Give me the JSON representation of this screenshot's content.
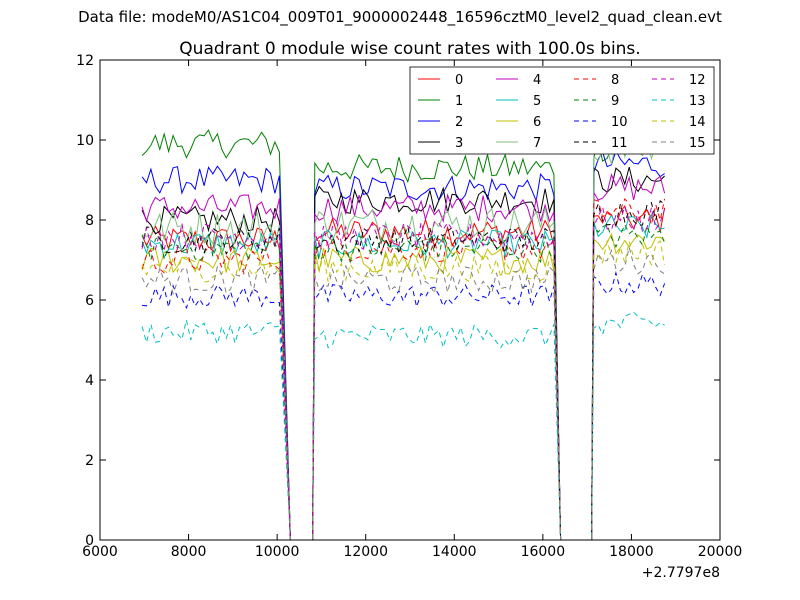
{
  "page": {
    "suptitle": "Data file: modeM0/AS1C04_009T01_9000002448_16596cztM0_level2_quad_clean.evt"
  },
  "chart_data": {
    "type": "line",
    "title": "Quadrant 0 module wise count rates with 100.0s bins.",
    "xlabel": "",
    "ylabel": "",
    "xlim": [
      6000,
      20000
    ],
    "ylim": [
      0,
      12
    ],
    "x_ticks": [
      "6000",
      "8000",
      "10000",
      "12000",
      "14000",
      "16000",
      "18000",
      "20000"
    ],
    "y_ticks": [
      "0",
      "2",
      "4",
      "6",
      "8",
      "10",
      "12"
    ],
    "x_offset_label": "+2.7797e8",
    "grid": false,
    "legend": {
      "placement": "top-right",
      "columns": 4
    },
    "segments": [
      {
        "start": 6950,
        "end": 10050
      },
      {
        "start": 10850,
        "end": 16250
      },
      {
        "start": 17150,
        "end": 18750
      }
    ],
    "gaps": [
      {
        "drop_start": 10050,
        "zero_from": 10300,
        "zero_to": 10800,
        "rise_end": 10850
      },
      {
        "drop_start": 16250,
        "zero_from": 16400,
        "zero_to": 17100,
        "rise_end": 17150
      }
    ],
    "bin_width": 100,
    "series": [
      {
        "name": "0",
        "color": "#ff0000",
        "dash": "solid",
        "levels": [
          7.5,
          7.7,
          8.0
        ],
        "noise": 0.35
      },
      {
        "name": "1",
        "color": "#008000",
        "dash": "solid",
        "levels": [
          9.9,
          9.3,
          9.8
        ],
        "noise": 0.35
      },
      {
        "name": "2",
        "color": "#0000ff",
        "dash": "solid",
        "levels": [
          9.0,
          8.8,
          9.4
        ],
        "noise": 0.35
      },
      {
        "name": "3",
        "color": "#000000",
        "dash": "solid",
        "levels": [
          8.0,
          8.5,
          9.0
        ],
        "noise": 0.35
      },
      {
        "name": "4",
        "color": "#bf00bf",
        "dash": "solid",
        "levels": [
          8.3,
          8.3,
          8.8
        ],
        "noise": 0.35
      },
      {
        "name": "5",
        "color": "#00bfbf",
        "dash": "solid",
        "levels": [
          7.4,
          7.4,
          7.8
        ],
        "noise": 0.35
      },
      {
        "name": "6",
        "color": "#bfbf00",
        "dash": "solid",
        "levels": [
          7.0,
          7.0,
          7.5
        ],
        "noise": 0.35
      },
      {
        "name": "7",
        "color": "#7fbf7f",
        "dash": "solid",
        "levels": [
          7.8,
          7.9,
          9.8
        ],
        "noise": 0.45
      },
      {
        "name": "8",
        "color": "#ff0000",
        "dash": "dashed",
        "levels": [
          7.0,
          7.3,
          8.2
        ],
        "noise": 0.35
      },
      {
        "name": "9",
        "color": "#008000",
        "dash": "dashed",
        "levels": [
          7.3,
          7.3,
          7.6
        ],
        "noise": 0.35
      },
      {
        "name": "10",
        "color": "#0000ff",
        "dash": "dashed",
        "levels": [
          6.1,
          6.1,
          6.4
        ],
        "noise": 0.3
      },
      {
        "name": "11",
        "color": "#000000",
        "dash": "dashed",
        "levels": [
          7.5,
          7.5,
          8.2
        ],
        "noise": 0.35
      },
      {
        "name": "12",
        "color": "#bf00bf",
        "dash": "dashed",
        "levels": [
          7.6,
          7.6,
          8.0
        ],
        "noise": 0.35
      },
      {
        "name": "13",
        "color": "#00bfbf",
        "dash": "dashed",
        "levels": [
          5.2,
          5.1,
          5.4
        ],
        "noise": 0.3
      },
      {
        "name": "14",
        "color": "#bfbf00",
        "dash": "dashed",
        "levels": [
          6.8,
          6.8,
          7.2
        ],
        "noise": 0.35
      },
      {
        "name": "15",
        "color": "#7f7f7f",
        "dash": "dashed",
        "levels": [
          6.5,
          6.5,
          7.0
        ],
        "noise": 0.35
      }
    ]
  }
}
